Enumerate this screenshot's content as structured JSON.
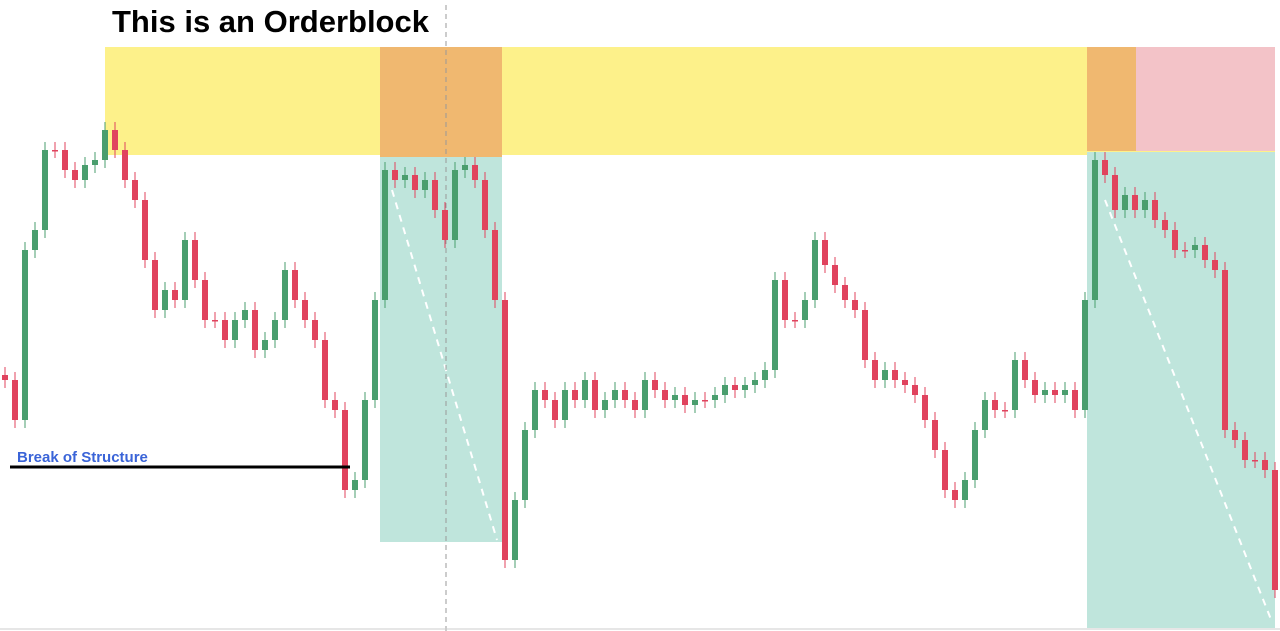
{
  "chart_data": {
    "type": "candlestick",
    "title": "This is an Orderblock",
    "annotations": [
      "Break of Structure"
    ],
    "ylim": [
      631,
      0
    ],
    "up_color": "#4a9e6e",
    "down_color": "#e0435e",
    "open": [
      375,
      380,
      420,
      250,
      230,
      150,
      150,
      170,
      180,
      165,
      160,
      130,
      150,
      180,
      200,
      260,
      310,
      290,
      300,
      240,
      280,
      320,
      320,
      340,
      320,
      310,
      350,
      340,
      320,
      270,
      300,
      320,
      340,
      400,
      410,
      490,
      480,
      400,
      300,
      170,
      180,
      175,
      190,
      180,
      210,
      240,
      170,
      165,
      180,
      230,
      300,
      560,
      500,
      430,
      390,
      400,
      420,
      390,
      400,
      380,
      410,
      400,
      390,
      400,
      410,
      380,
      390,
      400,
      395,
      405,
      400,
      400,
      395,
      385,
      390,
      385,
      380,
      370,
      280,
      320,
      320,
      300,
      240,
      265,
      285,
      300,
      310,
      360,
      380,
      370,
      380,
      385,
      395,
      420,
      450,
      490,
      500,
      480,
      430,
      400,
      410,
      410,
      360,
      380,
      395,
      390,
      395,
      390,
      410,
      300,
      160,
      175,
      210,
      195,
      210,
      200,
      220,
      230,
      250,
      250,
      245,
      260,
      270,
      430,
      440,
      460,
      460,
      470
    ],
    "close": [
      380,
      420,
      250,
      230,
      150,
      150,
      170,
      180,
      165,
      160,
      130,
      150,
      180,
      200,
      260,
      310,
      290,
      300,
      240,
      280,
      320,
      320,
      340,
      320,
      310,
      350,
      340,
      320,
      270,
      300,
      320,
      340,
      400,
      410,
      490,
      480,
      400,
      300,
      170,
      180,
      175,
      190,
      180,
      210,
      240,
      170,
      165,
      180,
      230,
      300,
      560,
      500,
      430,
      390,
      400,
      420,
      390,
      400,
      380,
      410,
      400,
      390,
      400,
      410,
      380,
      390,
      400,
      395,
      405,
      400,
      400,
      395,
      385,
      390,
      385,
      380,
      370,
      280,
      320,
      320,
      300,
      240,
      265,
      285,
      300,
      310,
      360,
      380,
      370,
      380,
      385,
      395,
      420,
      450,
      490,
      500,
      480,
      430,
      400,
      410,
      410,
      360,
      380,
      395,
      390,
      395,
      390,
      410,
      300,
      160,
      175,
      210,
      195,
      210,
      200,
      220,
      230,
      250,
      250,
      245,
      260,
      270,
      430,
      440,
      460,
      460,
      470,
      590
    ]
  }
}
